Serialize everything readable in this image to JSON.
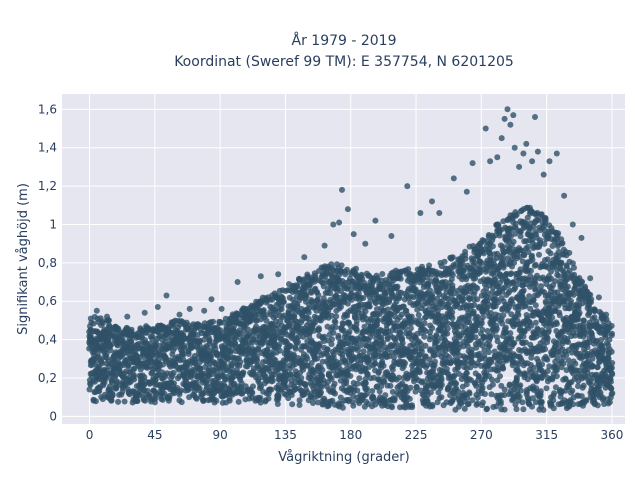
{
  "chart_data": {
    "type": "scatter",
    "title_lines": [
      "År 1979 - 2019",
      "Koordinat (Sweref 99 TM): E 357754, N 6201205"
    ],
    "xlabel": "Vågriktning (grader)",
    "ylabel": "Signifikant våghöjd (m)",
    "xlim": [
      -19,
      369
    ],
    "ylim": [
      -0.04,
      1.68
    ],
    "x_ticks": [
      0,
      45,
      90,
      135,
      180,
      225,
      270,
      315,
      360
    ],
    "x_tick_labels": [
      "0",
      "45",
      "90",
      "135",
      "180",
      "225",
      "270",
      "315",
      "360"
    ],
    "y_ticks": [
      0,
      0.2,
      0.4,
      0.6,
      0.8,
      1,
      1.2,
      1.4,
      1.6
    ],
    "y_tick_labels": [
      "0",
      "0,2",
      "0,4",
      "0,6",
      "0,8",
      "1",
      "1,2",
      "1,4",
      "1,6"
    ],
    "grid": true,
    "legend": "none",
    "colors": {
      "marker": "#2f5168",
      "plot_bg": "#e5e6ef",
      "grid": "#ffffff",
      "text": "#2a3f5f"
    },
    "upper_envelope": {
      "x": [
        0,
        10,
        20,
        30,
        45,
        60,
        75,
        90,
        105,
        120,
        135,
        150,
        165,
        180,
        195,
        210,
        225,
        240,
        255,
        270,
        280,
        290,
        300,
        310,
        320,
        330,
        340,
        350,
        360
      ],
      "y": [
        0.52,
        0.52,
        0.47,
        0.46,
        0.48,
        0.5,
        0.49,
        0.5,
        0.56,
        0.62,
        0.68,
        0.74,
        0.8,
        0.78,
        0.74,
        0.76,
        0.78,
        0.8,
        0.86,
        0.92,
        1.0,
        1.05,
        1.1,
        1.07,
        1.0,
        0.86,
        0.7,
        0.56,
        0.48
      ]
    },
    "lower_envelope": {
      "x": [
        0,
        45,
        90,
        135,
        180,
        225,
        270,
        315,
        360
      ],
      "y": [
        0.07,
        0.07,
        0.07,
        0.06,
        0.04,
        0.04,
        0.03,
        0.03,
        0.06
      ]
    },
    "outliers": [
      {
        "x": 5,
        "y": 0.55
      },
      {
        "x": 12,
        "y": 0.52
      },
      {
        "x": 26,
        "y": 0.52
      },
      {
        "x": 38,
        "y": 0.54
      },
      {
        "x": 47,
        "y": 0.57
      },
      {
        "x": 53,
        "y": 0.63
      },
      {
        "x": 62,
        "y": 0.53
      },
      {
        "x": 69,
        "y": 0.56
      },
      {
        "x": 79,
        "y": 0.55
      },
      {
        "x": 84,
        "y": 0.61
      },
      {
        "x": 91,
        "y": 0.56
      },
      {
        "x": 102,
        "y": 0.7
      },
      {
        "x": 118,
        "y": 0.73
      },
      {
        "x": 130,
        "y": 0.74
      },
      {
        "x": 148,
        "y": 0.83
      },
      {
        "x": 162,
        "y": 0.89
      },
      {
        "x": 168,
        "y": 1.0
      },
      {
        "x": 172,
        "y": 1.01
      },
      {
        "x": 174,
        "y": 1.18
      },
      {
        "x": 178,
        "y": 1.08
      },
      {
        "x": 182,
        "y": 0.95
      },
      {
        "x": 190,
        "y": 0.9
      },
      {
        "x": 197,
        "y": 1.02
      },
      {
        "x": 208,
        "y": 0.94
      },
      {
        "x": 219,
        "y": 1.2
      },
      {
        "x": 228,
        "y": 1.06
      },
      {
        "x": 236,
        "y": 1.12
      },
      {
        "x": 241,
        "y": 1.06
      },
      {
        "x": 251,
        "y": 1.24
      },
      {
        "x": 260,
        "y": 1.17
      },
      {
        "x": 264,
        "y": 1.32
      },
      {
        "x": 273,
        "y": 1.5
      },
      {
        "x": 276,
        "y": 1.33
      },
      {
        "x": 281,
        "y": 1.35
      },
      {
        "x": 284,
        "y": 1.45
      },
      {
        "x": 286,
        "y": 1.55
      },
      {
        "x": 288,
        "y": 1.6
      },
      {
        "x": 290,
        "y": 1.52
      },
      {
        "x": 292,
        "y": 1.57
      },
      {
        "x": 293,
        "y": 1.4
      },
      {
        "x": 296,
        "y": 1.3
      },
      {
        "x": 299,
        "y": 1.37
      },
      {
        "x": 301,
        "y": 1.42
      },
      {
        "x": 305,
        "y": 1.33
      },
      {
        "x": 307,
        "y": 1.56
      },
      {
        "x": 309,
        "y": 1.38
      },
      {
        "x": 313,
        "y": 1.26
      },
      {
        "x": 317,
        "y": 1.33
      },
      {
        "x": 322,
        "y": 1.37
      },
      {
        "x": 327,
        "y": 1.15
      },
      {
        "x": 333,
        "y": 1.0
      },
      {
        "x": 339,
        "y": 0.93
      },
      {
        "x": 345,
        "y": 0.72
      },
      {
        "x": 351,
        "y": 0.62
      },
      {
        "x": 356,
        "y": 0.53
      }
    ]
  }
}
